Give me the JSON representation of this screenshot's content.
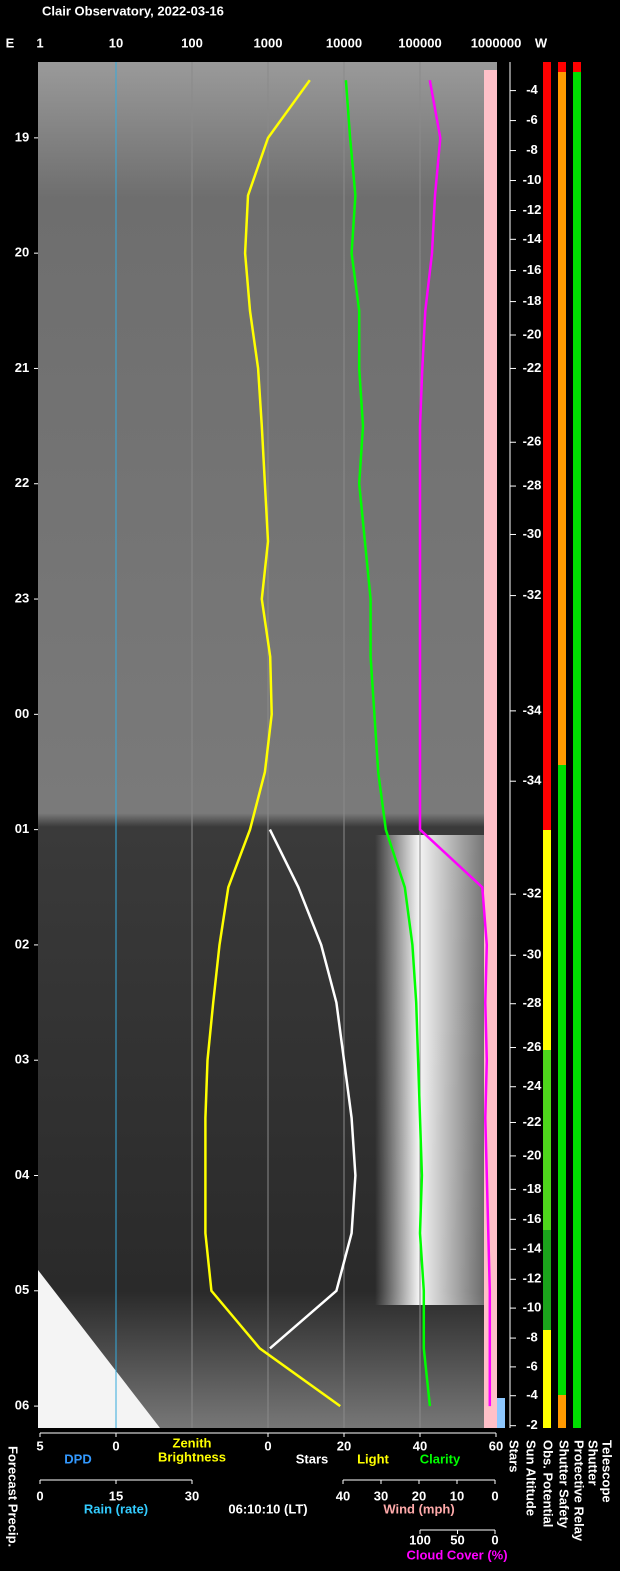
{
  "chart_data": {
    "type": "line",
    "title": "Clair Observatory, 2022-03-16",
    "east_label": "E",
    "west_label": "W",
    "ylim": [
      18.342,
      30.19
    ],
    "yticks": [
      19,
      20,
      21,
      22,
      23,
      {
        "value": 24,
        "label": "00"
      },
      {
        "value": 25,
        "label": "01"
      },
      {
        "value": 26,
        "label": "02"
      },
      {
        "value": 27,
        "label": "03"
      },
      {
        "value": 28,
        "label": "04"
      },
      {
        "value": 29,
        "label": "05"
      },
      {
        "value": 30,
        "label": "06"
      }
    ],
    "axes": {
      "brightness": {
        "lim": [
          1,
          1000000
        ],
        "log": true,
        "ticks": [
          1,
          10,
          100,
          1000,
          10000,
          100000,
          1000000
        ]
      },
      "dpd": {
        "lim": [
          5,
          0
        ],
        "ticks": [
          5,
          0
        ],
        "title": "DPD",
        "color": "#3399ff"
      },
      "clarity": {
        "lim": [
          0,
          60
        ],
        "ticks": [
          0,
          20,
          40,
          60
        ]
      },
      "rain": {
        "lim": [
          0,
          30
        ],
        "ticks": [
          0,
          15,
          30
        ],
        "title": "Rain (rate)",
        "color": "#33ccff"
      },
      "wind": {
        "lim": [
          40,
          0
        ],
        "ticks": [
          40,
          30,
          20,
          10,
          0
        ],
        "title": "Wind (mph)",
        "color": "#ffaaaa"
      },
      "cloud": {
        "lim": [
          100,
          0
        ],
        "ticks": [
          100,
          50,
          0
        ],
        "title": "Cloud Cover (%)",
        "color": "#ff00ff"
      }
    },
    "zenith_brightness_label": [
      "Zenith",
      "Brightness"
    ],
    "stars_label": "Stars",
    "light_label": "Light",
    "clarity_label": "Clarity",
    "time_label": "06:10:10 (LT)",
    "forecast_label": "Forecast Precip.",
    "status_labels": [
      "Stars",
      "Sun Altitude",
      "Obs. Potential",
      "Shutter Safety",
      "Protective Relay",
      "Shutter",
      "Telescope"
    ],
    "sun_altitude": {
      "times": [
        18.59,
        18.85,
        19.11,
        19.37,
        19.63,
        19.88,
        20.15,
        20.42,
        20.71,
        21.0,
        21.64,
        22.02,
        22.44,
        22.97,
        23.97,
        24.58,
        25.56,
        26.09,
        26.51,
        26.89,
        27.23,
        27.54,
        27.83,
        28.12,
        28.38,
        28.64,
        28.9,
        29.15,
        29.41,
        29.66,
        29.91,
        30.17
      ],
      "values": [
        -4,
        -6,
        -8,
        -10,
        -12,
        -14,
        -16,
        -18,
        -20,
        -22,
        -26,
        -28,
        -30,
        -32,
        -34,
        -34,
        -32,
        -30,
        -28,
        -26,
        -24,
        -22,
        -20,
        -18,
        -16,
        -14,
        -12,
        -10,
        -8,
        -6,
        -4,
        -2
      ]
    },
    "x": [
      18.5,
      19,
      19.5,
      20,
      20.5,
      21,
      21.5,
      22,
      22.5,
      23,
      23.5,
      24,
      24.5,
      25,
      25.5,
      26,
      26.5,
      27,
      27.5,
      28,
      28.5,
      29,
      29.5,
      30
    ],
    "series": [
      {
        "name": "Zenith Brightness",
        "color": "#ffff00",
        "axis": "brightness",
        "values": [
          3550,
          1000,
          545,
          500,
          580,
          740,
          830,
          910,
          1000,
          830,
          1070,
          1120,
          910,
          580,
          300,
          230,
          190,
          160,
          150,
          150,
          150,
          180,
          780,
          8900
        ]
      },
      {
        "name": "Clarity",
        "color": "#00ff00",
        "axis": "clarity",
        "values": [
          20.5,
          21.6,
          23,
          22,
          24,
          24,
          25,
          24,
          25.5,
          27,
          27,
          28,
          29,
          31,
          36,
          38,
          39,
          39.5,
          40,
          40.5,
          40,
          41,
          41,
          42.6
        ]
      },
      {
        "name": "Cloud Cover",
        "color": "#ff00ff",
        "axis": "cloud",
        "values": [
          87,
          73,
          80,
          84,
          93,
          97,
          100,
          100,
          100,
          100,
          100,
          100,
          100,
          100,
          17,
          11,
          13,
          11,
          13,
          11,
          9,
          7,
          7,
          7
        ]
      },
      {
        "name": "Stars",
        "color": "#ffffff",
        "axis": "clarity",
        "values": [
          null,
          null,
          null,
          null,
          null,
          null,
          null,
          null,
          null,
          null,
          null,
          null,
          null,
          0.5,
          8,
          14,
          18,
          20,
          22,
          23,
          22,
          18,
          0.5,
          null
        ]
      }
    ]
  }
}
